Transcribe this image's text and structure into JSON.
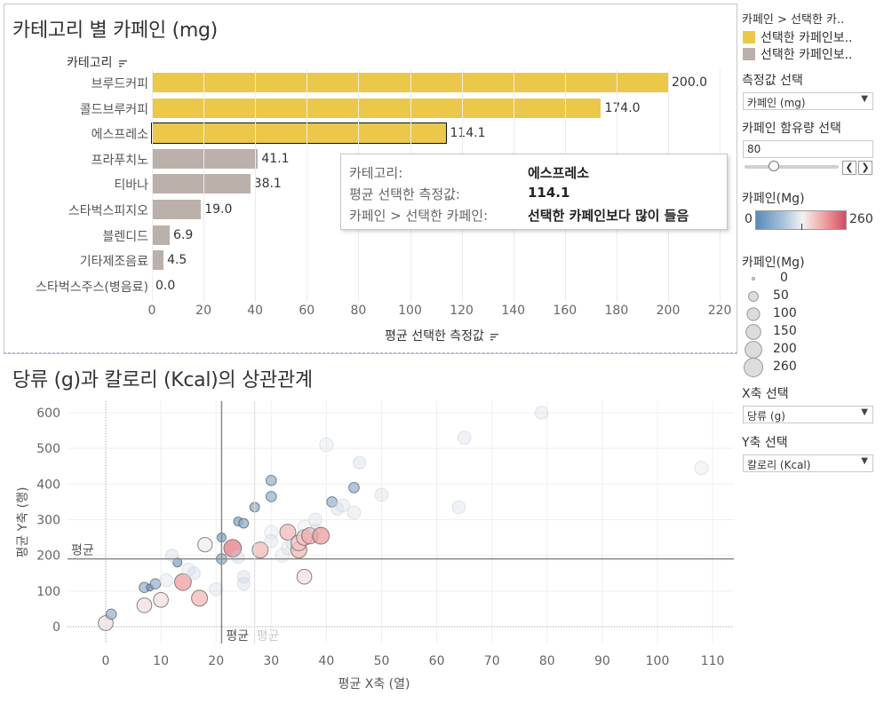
{
  "bar_chart": {
    "title": "카테고리 별 카페인 (mg)",
    "category_header": "카테고리",
    "x_axis_label": "평균 선택한 측정값",
    "x_ticks": [
      "0",
      "20",
      "40",
      "60",
      "80",
      "100",
      "120",
      "140",
      "160",
      "180",
      "200",
      "220"
    ],
    "colors": {
      "above": "#ebc84a",
      "below": "#bcb0ab",
      "highlight_border": "#111111"
    }
  },
  "scatter": {
    "title": "당류 (g)과 칼로리 (Kcal)의 상관관계",
    "x_axis_label": "평균 X축 (열)",
    "y_axis_label": "평균 Y축 (행)",
    "x_ticks": [
      "0",
      "10",
      "20",
      "30",
      "40",
      "50",
      "60",
      "70",
      "80",
      "90",
      "100",
      "110"
    ],
    "y_ticks": [
      "0",
      "100",
      "200",
      "300",
      "400",
      "500",
      "600"
    ],
    "ref_y_label": "평균",
    "ref_x_label": "평균",
    "ref_x_label_faded": "평균"
  },
  "tooltip": {
    "rows": [
      {
        "key": "카테고리:",
        "value": "에스프레소"
      },
      {
        "key": "평균 선택한 측정값:",
        "value": "114.1"
      },
      {
        "key": "카페인 > 선택한 카페인:",
        "value": "선택한 카페인보다 많이 들음"
      }
    ]
  },
  "sidebar": {
    "color_legend_title": "카페인 > 선택한 카..",
    "color_legend_items": [
      {
        "label": "선택한 카페인보..",
        "color": "#ebc84a"
      },
      {
        "label": "선택한 카페인보..",
        "color": "#bcb0ab"
      }
    ],
    "measure_title": "측정값 선택",
    "measure_value": "카페인 (mg)",
    "caffeine_amount_title": "카페인 함유량 선택",
    "caffeine_amount_value": "80",
    "caffeine_amount_fraction": 0.31,
    "gradient_title": "카페인(Mg)",
    "gradient_min": "0",
    "gradient_max": "260",
    "size_title": "카페인(Mg)",
    "size_values": [
      "0",
      "50",
      "100",
      "150",
      "200",
      "260"
    ],
    "x_select_title": "X축 선택",
    "x_select_value": "당류 (g)",
    "y_select_title": "Y축 선택",
    "y_select_value": "칼로리 (Kcal)",
    "dropdown_arrow": "▼"
  },
  "chart_data": [
    {
      "type": "bar",
      "title": "카테고리 별 카페인 (mg)",
      "xlabel": "평균 선택한 측정값",
      "ylabel": "카테고리",
      "xlim": [
        0,
        220
      ],
      "categories": [
        "브루드커피",
        "콜드브루커피",
        "에스프레소",
        "프라푸치노",
        "티바나",
        "스타벅스피지오",
        "블렌디드",
        "기타제조음료",
        "스타벅스주스(병음료)"
      ],
      "values": [
        200.0,
        174.0,
        114.1,
        41.1,
        38.1,
        19.0,
        6.9,
        4.5,
        0.0
      ],
      "value_labels": [
        "200.0",
        "174.0",
        "114.1",
        "41.1",
        "38.1",
        "19.0",
        "6.9",
        "4.5",
        "0.0"
      ],
      "above_threshold": [
        true,
        true,
        true,
        false,
        false,
        false,
        false,
        false,
        false
      ],
      "highlighted": "에스프레소"
    },
    {
      "type": "scatter",
      "title": "당류 (g)과 칼로리 (Kcal)의 상관관계",
      "xlabel": "평균 X축 (열)",
      "ylabel": "평균 Y축 (행)",
      "xlim": [
        -7,
        114
      ],
      "ylim": [
        -40,
        630
      ],
      "reference_lines": {
        "x_mean": 21,
        "y_mean": 190,
        "x_mean_faded": 27
      },
      "points": [
        {
          "x": 0,
          "y": 10,
          "c": 150
        },
        {
          "x": 1,
          "y": 35,
          "c": 60
        },
        {
          "x": 7,
          "y": 60,
          "c": 150
        },
        {
          "x": 7,
          "y": 110,
          "c": 60
        },
        {
          "x": 8,
          "y": 110,
          "c": 20
        },
        {
          "x": 9,
          "y": 120,
          "c": 60
        },
        {
          "x": 10,
          "y": 75,
          "c": 150
        },
        {
          "x": 11,
          "y": 130,
          "c": 110
        },
        {
          "x": 13,
          "y": 180,
          "c": 40
        },
        {
          "x": 14,
          "y": 125,
          "c": 200
        },
        {
          "x": 16,
          "y": 150,
          "c": 100
        },
        {
          "x": 17,
          "y": 80,
          "c": 180
        },
        {
          "x": 18,
          "y": 230,
          "c": 140
        },
        {
          "x": 20,
          "y": 105,
          "c": 110
        },
        {
          "x": 21,
          "y": 190,
          "c": 60
        },
        {
          "x": 21,
          "y": 250,
          "c": 40
        },
        {
          "x": 23,
          "y": 220,
          "c": 225
        },
        {
          "x": 24,
          "y": 195,
          "c": 100
        },
        {
          "x": 24,
          "y": 295,
          "c": 40
        },
        {
          "x": 25,
          "y": 290,
          "c": 50
        },
        {
          "x": 25,
          "y": 140,
          "c": 100
        },
        {
          "x": 25,
          "y": 120,
          "c": 100
        },
        {
          "x": 27,
          "y": 335,
          "c": 50
        },
        {
          "x": 28,
          "y": 215,
          "c": 180
        },
        {
          "x": 30,
          "y": 265,
          "c": 120
        },
        {
          "x": 30,
          "y": 240,
          "c": 110
        },
        {
          "x": 30,
          "y": 365,
          "c": 60
        },
        {
          "x": 30,
          "y": 410,
          "c": 60
        },
        {
          "x": 32,
          "y": 200,
          "c": 120
        },
        {
          "x": 33,
          "y": 220,
          "c": 110
        },
        {
          "x": 33,
          "y": 265,
          "c": 180
        },
        {
          "x": 34,
          "y": 230,
          "c": 110
        },
        {
          "x": 35,
          "y": 215,
          "c": 180
        },
        {
          "x": 35,
          "y": 235,
          "c": 170
        },
        {
          "x": 36,
          "y": 250,
          "c": 170
        },
        {
          "x": 36,
          "y": 280,
          "c": 120
        },
        {
          "x": 37,
          "y": 255,
          "c": 190
        },
        {
          "x": 38,
          "y": 300,
          "c": 110
        },
        {
          "x": 38,
          "y": 270,
          "c": 110
        },
        {
          "x": 39,
          "y": 255,
          "c": 200
        },
        {
          "x": 40,
          "y": 510,
          "c": 120
        },
        {
          "x": 41,
          "y": 350,
          "c": 60
        },
        {
          "x": 42,
          "y": 330,
          "c": 100
        },
        {
          "x": 43,
          "y": 340,
          "c": 110
        },
        {
          "x": 45,
          "y": 390,
          "c": 60
        },
        {
          "x": 45,
          "y": 320,
          "c": 110
        },
        {
          "x": 36,
          "y": 140,
          "c": 150
        },
        {
          "x": 46,
          "y": 460,
          "c": 100
        },
        {
          "x": 50,
          "y": 370,
          "c": 110
        },
        {
          "x": 12,
          "y": 200,
          "c": 100
        },
        {
          "x": 15,
          "y": 160,
          "c": 110
        },
        {
          "x": 108,
          "y": 445,
          "c": 120
        },
        {
          "x": 79,
          "y": 600,
          "c": 110
        },
        {
          "x": 65,
          "y": 530,
          "c": 110
        },
        {
          "x": 64,
          "y": 335,
          "c": 110
        }
      ]
    }
  ]
}
